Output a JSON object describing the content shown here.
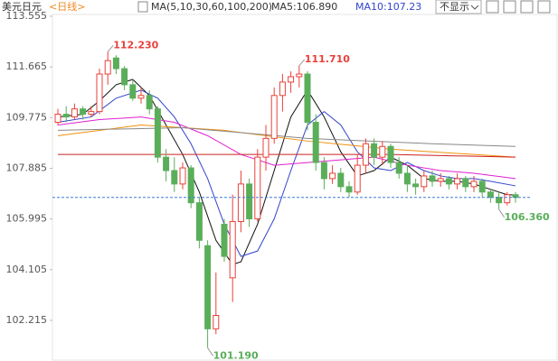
{
  "chart_data": {
    "type": "candlestick",
    "title": "美元日元",
    "period": "<日线>",
    "ma_legend": "MA(5,10,30,60,100,200)",
    "ma5_label": "MA5:106.890",
    "ma10_label": "MA10:107.23",
    "dropdown": "不显示",
    "up_color": "#e8413a",
    "down_color": "#5aae5a",
    "ylim": [
      100.7,
      114.16
    ],
    "yticks": [
      113.555,
      111.665,
      109.775,
      107.885,
      105.995,
      104.105,
      102.215
    ],
    "open": [
      109.6,
      109.9,
      109.8,
      110.1,
      109.9,
      110.0,
      111.4,
      112.0,
      111.6,
      111.0,
      110.5,
      110.6,
      110.1,
      108.3,
      107.8,
      107.3,
      107.9,
      106.6,
      105.0,
      101.9,
      105.8,
      103.8,
      105.9,
      107.3,
      106.0,
      108.3,
      109.0,
      110.6,
      111.1,
      111.3,
      111.4,
      109.6,
      108.1,
      107.5,
      107.7,
      107.2,
      107.0,
      108.0,
      108.8,
      108.3,
      108.7,
      108.1,
      107.7,
      107.3,
      107.2,
      107.6,
      107.4,
      107.5,
      107.3,
      107.5,
      107.2,
      107.4,
      107.0,
      106.8,
      106.6,
      106.9
    ],
    "high": [
      110.1,
      110.2,
      110.3,
      110.2,
      110.2,
      111.6,
      112.23,
      112.1,
      111.7,
      111.2,
      110.9,
      110.8,
      110.2,
      108.6,
      108.3,
      108.1,
      108.0,
      106.8,
      105.2,
      104.0,
      106.0,
      106.9,
      107.8,
      107.5,
      108.6,
      109.5,
      110.9,
      111.4,
      111.5,
      111.71,
      111.5,
      109.9,
      108.3,
      108.0,
      107.9,
      107.4,
      108.4,
      109.0,
      109.0,
      108.9,
      108.8,
      108.3,
      108.0,
      107.5,
      107.8,
      107.8,
      107.7,
      107.6,
      107.7,
      107.6,
      107.6,
      107.5,
      107.1,
      107.0,
      107.0,
      107.0
    ],
    "low": [
      109.5,
      109.6,
      109.7,
      109.7,
      109.8,
      109.9,
      111.0,
      111.4,
      110.8,
      110.4,
      110.3,
      109.9,
      108.1,
      107.4,
      107.0,
      107.1,
      106.4,
      104.9,
      101.19,
      101.7,
      104.4,
      102.9,
      105.5,
      105.7,
      105.9,
      107.8,
      108.8,
      110.0,
      110.7,
      110.9,
      109.3,
      107.8,
      107.1,
      107.3,
      107.0,
      106.8,
      106.9,
      107.7,
      108.0,
      108.0,
      107.9,
      107.5,
      107.0,
      106.9,
      107.0,
      107.2,
      107.2,
      107.1,
      107.1,
      107.0,
      107.0,
      106.8,
      106.6,
      106.36,
      106.5,
      106.6
    ],
    "close": [
      109.9,
      109.8,
      110.1,
      109.9,
      110.0,
      111.4,
      111.9,
      111.6,
      111.0,
      110.5,
      110.6,
      110.1,
      108.3,
      107.8,
      107.3,
      107.9,
      106.6,
      105.2,
      101.9,
      102.4,
      104.6,
      105.9,
      107.3,
      106.0,
      108.3,
      109.0,
      110.6,
      111.1,
      111.3,
      111.4,
      109.6,
      108.1,
      107.5,
      107.7,
      107.2,
      107.0,
      108.0,
      108.8,
      108.3,
      108.7,
      108.1,
      107.7,
      107.3,
      107.2,
      107.6,
      107.4,
      107.5,
      107.3,
      107.5,
      107.2,
      107.4,
      107.0,
      106.8,
      106.6,
      106.9,
      106.8
    ],
    "ma_lines": [
      {
        "color": "#111111",
        "x": [
          0,
          3,
          5,
          7,
          9,
          11,
          13,
          15,
          17,
          19,
          21,
          22,
          24,
          26,
          28,
          30,
          32,
          34,
          36,
          38,
          40,
          42,
          44,
          46,
          48,
          50,
          52,
          54,
          55
        ],
        "values": [
          109.8,
          109.9,
          110.4,
          111.0,
          111.2,
          110.6,
          109.5,
          108.4,
          107.0,
          105.2,
          104.3,
          104.4,
          105.8,
          107.8,
          109.8,
          110.8,
          109.8,
          108.5,
          107.6,
          107.8,
          108.3,
          108.0,
          107.5,
          107.4,
          107.4,
          107.3,
          107.1,
          106.9,
          106.89
        ]
      },
      {
        "color": "#3344cc",
        "x": [
          0,
          4,
          7,
          10,
          12,
          14,
          16,
          18,
          20,
          22,
          24,
          26,
          28,
          30,
          32,
          34,
          36,
          38,
          40,
          42,
          44,
          46,
          48,
          50,
          52,
          55
        ],
        "values": [
          109.6,
          109.8,
          110.5,
          110.8,
          110.5,
          109.8,
          108.8,
          107.5,
          105.8,
          104.6,
          104.8,
          106.0,
          107.8,
          109.5,
          110.0,
          109.5,
          108.5,
          107.9,
          107.8,
          108.1,
          107.8,
          107.6,
          107.5,
          107.5,
          107.4,
          107.23
        ]
      },
      {
        "color": "#e020d0",
        "x": [
          0,
          5,
          10,
          14,
          18,
          22,
          26,
          30,
          34,
          38,
          42,
          46,
          50,
          55
        ],
        "values": [
          109.5,
          109.7,
          109.8,
          109.6,
          109.1,
          108.4,
          108.0,
          108.1,
          108.2,
          108.3,
          108.0,
          107.8,
          107.7,
          107.5
        ]
      },
      {
        "color": "#f0900a",
        "x": [
          0,
          10,
          20,
          30,
          40,
          50,
          55
        ],
        "values": [
          109.1,
          109.5,
          109.3,
          108.9,
          108.6,
          108.4,
          108.3
        ]
      },
      {
        "color": "#cc2222",
        "x": [
          0,
          20,
          40,
          55
        ],
        "values": [
          108.4,
          108.4,
          108.4,
          108.3
        ]
      },
      {
        "color": "#888888",
        "x": [
          0,
          15,
          30,
          45,
          55
        ],
        "values": [
          109.3,
          109.4,
          109.0,
          108.8,
          108.7
        ]
      }
    ],
    "current_price": 106.8,
    "annotations": [
      {
        "label": "112.230",
        "value": 112.23,
        "x": 6,
        "color": "#e8413a"
      },
      {
        "label": "111.710",
        "value": 111.71,
        "x": 29,
        "color": "#e8413a"
      },
      {
        "label": "101.190",
        "value": 101.19,
        "x": 18,
        "color": "#5aae5a"
      },
      {
        "label": "106.360",
        "value": 106.36,
        "x": 53,
        "color": "#5aae5a"
      }
    ]
  }
}
